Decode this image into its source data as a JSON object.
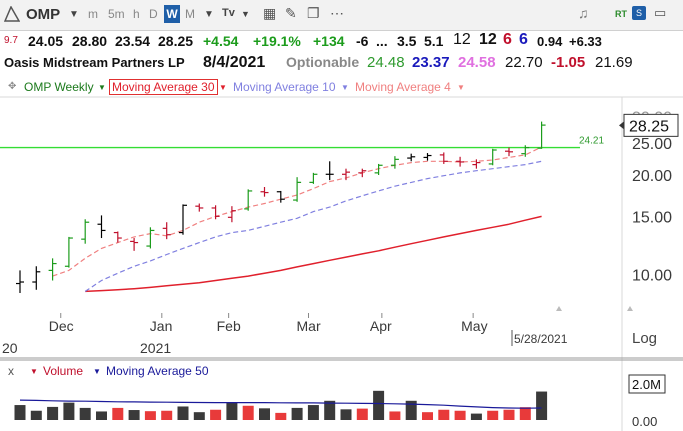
{
  "toolbar": {
    "symbol": "OMP",
    "intervals": [
      "m",
      "5m",
      "h",
      "D",
      "W",
      "M"
    ],
    "active_interval": "W",
    "rt_label": "RT"
  },
  "quote": {
    "small_prefix": "9.7",
    "last": "24.05",
    "high": "28.80",
    "low": "23.54",
    "close": "28.25",
    "change": "+4.54",
    "change_pct": "+19.1%",
    "f1": "+134",
    "f2": "-6",
    "f3": "...",
    "f4": "3.5",
    "f5": "5.1",
    "f6": "12",
    "f7": "12",
    "f8": "6",
    "f9": "6",
    "f10": "0.94",
    "f11": "+6.33"
  },
  "company": {
    "name": "Oasis Midstream Partners LP",
    "date": "8/4/2021",
    "optionable": "Optionable",
    "v1": "24.48",
    "v2": "23.37",
    "v3": "24.58",
    "v4": "22.70",
    "v5": "-1.05",
    "v6": "21.69"
  },
  "legend": {
    "series": "OMP Weekly",
    "ma30": "Moving Average 30",
    "ma10": "Moving Average 10",
    "ma4": "Moving Average 4",
    "volume": "Volume",
    "vol_ma": "Moving Average 50",
    "close_marker": "x"
  },
  "colors": {
    "up": "#1c9c1c",
    "down": "#c0102c",
    "neutral": "#000000",
    "ma30": "#e0202c",
    "ma10": "#8080e0",
    "ma4": "#f08080",
    "hline": "#33dd33",
    "vol_ma": "#1a1a9a"
  },
  "axis": {
    "price_ticks": [
      "30.00",
      "25.00",
      "20.00",
      "15.00",
      "10.00"
    ],
    "current_price_label": "28.25",
    "hline_label": "24.21",
    "x_labels": [
      "Dec",
      "Jan",
      "Feb",
      "Mar",
      "Apr",
      "May"
    ],
    "year_label": "2021",
    "left_year_fragment": "20",
    "date_box": "5/28/2021",
    "log_label": "Log",
    "vol_ticks": [
      "2.0M",
      "0.00"
    ]
  },
  "chart_data": [
    {
      "type": "ohlc",
      "scale": "log",
      "ylim": [
        8.5,
        31
      ],
      "hline": 24.21,
      "last_price": 28.25,
      "bars": [
        {
          "o": 9.4,
          "h": 10.3,
          "l": 8.8,
          "c": 9.5,
          "dir": "n"
        },
        {
          "o": 9.5,
          "h": 10.6,
          "l": 9.0,
          "c": 10.2,
          "dir": "n"
        },
        {
          "o": 10.3,
          "h": 11.2,
          "l": 9.6,
          "c": 10.8,
          "dir": "u"
        },
        {
          "o": 10.6,
          "h": 13.0,
          "l": 10.5,
          "c": 12.9,
          "dir": "u"
        },
        {
          "o": 12.8,
          "h": 14.7,
          "l": 12.4,
          "c": 14.4,
          "dir": "u"
        },
        {
          "o": 14.2,
          "h": 15.1,
          "l": 12.9,
          "c": 13.6,
          "dir": "n"
        },
        {
          "o": 13.4,
          "h": 13.5,
          "l": 12.5,
          "c": 12.9,
          "dir": "d"
        },
        {
          "o": 12.6,
          "h": 12.9,
          "l": 11.8,
          "c": 12.5,
          "dir": "d"
        },
        {
          "o": 12.2,
          "h": 13.9,
          "l": 12.0,
          "c": 13.6,
          "dir": "u"
        },
        {
          "o": 13.8,
          "h": 14.4,
          "l": 12.8,
          "c": 13.2,
          "dir": "d"
        },
        {
          "o": 13.4,
          "h": 16.3,
          "l": 13.2,
          "c": 16.2,
          "dir": "n"
        },
        {
          "o": 16.1,
          "h": 16.4,
          "l": 15.5,
          "c": 15.9,
          "dir": "d"
        },
        {
          "o": 15.9,
          "h": 16.2,
          "l": 14.7,
          "c": 15.0,
          "dir": "d"
        },
        {
          "o": 14.9,
          "h": 16.1,
          "l": 14.4,
          "c": 15.6,
          "dir": "d"
        },
        {
          "o": 15.8,
          "h": 18.1,
          "l": 15.6,
          "c": 17.9,
          "dir": "u"
        },
        {
          "o": 17.8,
          "h": 18.4,
          "l": 17.2,
          "c": 17.7,
          "dir": "d"
        },
        {
          "o": 17.8,
          "h": 17.9,
          "l": 16.5,
          "c": 16.9,
          "dir": "n"
        },
        {
          "o": 16.8,
          "h": 19.7,
          "l": 16.6,
          "c": 19.0,
          "dir": "u"
        },
        {
          "o": 19.0,
          "h": 20.3,
          "l": 18.8,
          "c": 20.1,
          "dir": "u"
        },
        {
          "o": 20.1,
          "h": 22.0,
          "l": 19.3,
          "c": 20.1,
          "dir": "n"
        },
        {
          "o": 20.1,
          "h": 20.9,
          "l": 19.3,
          "c": 20.4,
          "dir": "d"
        },
        {
          "o": 20.3,
          "h": 20.9,
          "l": 19.7,
          "c": 20.6,
          "dir": "d"
        },
        {
          "o": 20.3,
          "h": 21.6,
          "l": 20.0,
          "c": 21.4,
          "dir": "u"
        },
        {
          "o": 21.4,
          "h": 22.8,
          "l": 20.9,
          "c": 22.3,
          "dir": "u"
        },
        {
          "o": 22.5,
          "h": 23.2,
          "l": 22.0,
          "c": 22.7,
          "dir": "n"
        },
        {
          "o": 22.6,
          "h": 23.3,
          "l": 22.1,
          "c": 22.9,
          "dir": "n"
        },
        {
          "o": 23.0,
          "h": 23.4,
          "l": 21.6,
          "c": 22.0,
          "dir": "d"
        },
        {
          "o": 22.0,
          "h": 22.7,
          "l": 21.2,
          "c": 21.9,
          "dir": "d"
        },
        {
          "o": 21.5,
          "h": 22.3,
          "l": 20.9,
          "c": 21.8,
          "dir": "d"
        },
        {
          "o": 21.6,
          "h": 24.0,
          "l": 21.4,
          "c": 23.8,
          "dir": "u"
        },
        {
          "o": 23.6,
          "h": 24.2,
          "l": 22.8,
          "c": 23.5,
          "dir": "d"
        },
        {
          "o": 23.2,
          "h": 24.6,
          "l": 22.7,
          "c": 24.2,
          "dir": "u"
        },
        {
          "o": 24.1,
          "h": 29.0,
          "l": 24.0,
          "c": 28.3,
          "dir": "u"
        }
      ],
      "ma4": [
        null,
        null,
        9.9,
        10.3,
        11.2,
        12.0,
        12.5,
        13.0,
        13.3,
        13.1,
        13.6,
        14.4,
        15.0,
        15.5,
        16.0,
        16.4,
        16.9,
        17.4,
        18.2,
        19.1,
        19.6,
        20.3,
        20.9,
        21.4,
        21.8,
        22.0,
        22.0,
        21.9,
        22.0,
        22.2,
        22.6,
        23.0,
        24.3
      ],
      "ma10": [
        null,
        null,
        null,
        null,
        8.9,
        9.6,
        10.1,
        10.6,
        11.0,
        11.5,
        12.0,
        12.5,
        13.0,
        13.4,
        13.6,
        14.0,
        14.4,
        14.8,
        15.5,
        16.0,
        16.7,
        17.3,
        17.9,
        18.5,
        19.0,
        19.5,
        19.9,
        20.3,
        20.6,
        20.9,
        21.2,
        21.5,
        22.0
      ],
      "ma30": [
        null,
        null,
        null,
        null,
        8.9,
        8.95,
        9.0,
        9.07,
        9.15,
        9.25,
        9.35,
        9.45,
        9.6,
        9.75,
        9.9,
        10.1,
        10.3,
        10.55,
        10.8,
        11.05,
        11.3,
        11.55,
        11.8,
        12.1,
        12.4,
        12.7,
        13.0,
        13.3,
        13.6,
        13.9,
        14.2,
        14.6,
        15.0
      ]
    },
    {
      "type": "bar",
      "title": "Volume",
      "unit": "M",
      "ylim": [
        0,
        2.6
      ],
      "values": [
        1.05,
        0.65,
        0.92,
        1.22,
        0.85,
        0.6,
        0.85,
        0.7,
        0.62,
        0.65,
        0.95,
        0.55,
        0.72,
        1.2,
        1.0,
        0.82,
        0.5,
        0.85,
        1.05,
        1.35,
        0.75,
        0.8,
        2.05,
        0.6,
        1.35,
        0.55,
        0.72,
        0.65,
        0.45,
        0.65,
        0.72,
        0.9,
        2.0
      ],
      "dir": [
        "n",
        "n",
        "u",
        "u",
        "n",
        "n",
        "d",
        "n",
        "d",
        "d",
        "u",
        "n",
        "d",
        "n",
        "d",
        "u",
        "d",
        "u",
        "u",
        "n",
        "n",
        "d",
        "n",
        "d",
        "n",
        "d",
        "d",
        "d",
        "n",
        "d",
        "d",
        "d",
        "n"
      ],
      "ma50": [
        1.4,
        1.38,
        1.35,
        1.33,
        1.32,
        1.3,
        1.28,
        1.27,
        1.26,
        1.25,
        1.24,
        1.23,
        1.22,
        1.22,
        1.22,
        1.22,
        1.21,
        1.2,
        1.2,
        1.19,
        1.18,
        1.17,
        1.16,
        1.14,
        1.12,
        1.08,
        1.04,
        0.98,
        0.92,
        0.87,
        0.84,
        0.83,
        0.84
      ]
    }
  ]
}
